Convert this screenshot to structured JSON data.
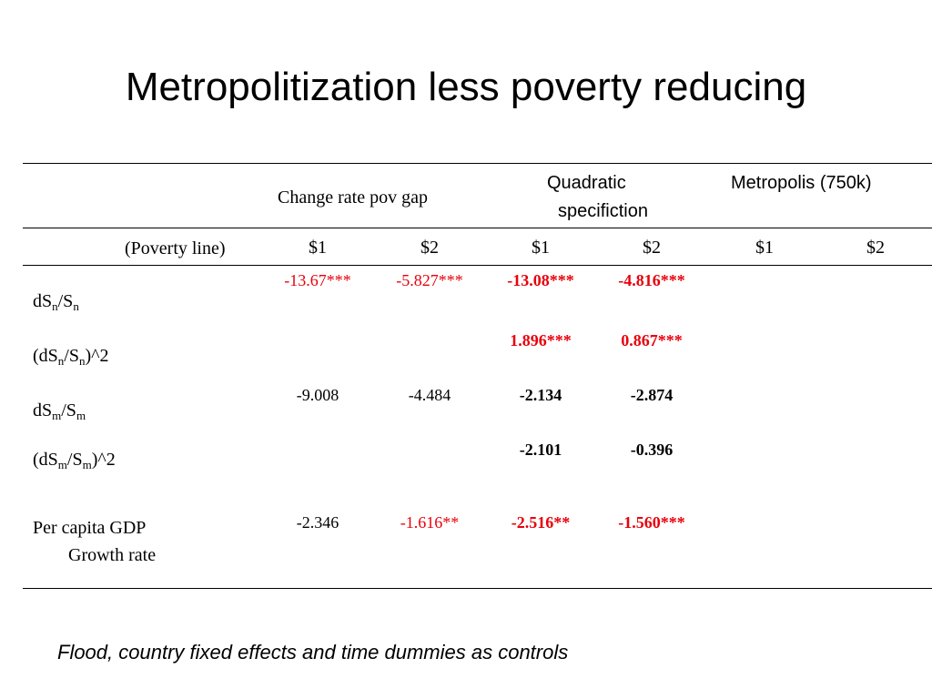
{
  "title": "Metropolitization less poverty reducing",
  "table": {
    "headers": {
      "group1": "Change rate pov gap",
      "group2": [
        "Quadratic",
        "specifiction"
      ],
      "group3": "Metropolis (750k)",
      "poverty_line_label": "(Poverty line)",
      "columns": [
        "$1",
        "$2",
        "$1",
        "$2",
        "$1",
        "$2"
      ]
    },
    "rows": [
      {
        "label_parts": [
          "dS",
          "n",
          "/S",
          "n",
          ""
        ],
        "cells": [
          "-13.67***",
          "-5.827***",
          "-13.08***",
          "-4.816***",
          "",
          ""
        ],
        "styles": [
          "red",
          "red",
          "red bold",
          "red bold",
          "",
          ""
        ]
      },
      {
        "label_parts": [
          "(dS",
          "n",
          "/S",
          "n",
          ")^2"
        ],
        "cells": [
          "",
          "",
          "1.896***",
          "0.867***",
          "",
          ""
        ],
        "styles": [
          "",
          "",
          "red bold",
          "red bold",
          "",
          ""
        ]
      },
      {
        "label_parts": [
          "dS",
          "m",
          "/S",
          "m",
          ""
        ],
        "cells": [
          "-9.008",
          "-4.484",
          "-2.134",
          "-2.874",
          "",
          ""
        ],
        "styles": [
          "",
          "",
          "bold",
          "bold",
          "",
          ""
        ]
      },
      {
        "label_parts": [
          "(dS",
          "m",
          "/S",
          "m",
          ")^2"
        ],
        "cells": [
          "",
          "",
          "-2.101",
          "-0.396",
          "",
          ""
        ],
        "styles": [
          "",
          "",
          "bold",
          "bold",
          "",
          ""
        ]
      },
      {
        "label_lines": [
          "Per capita GDP",
          "Growth rate"
        ],
        "cells": [
          "-2.346",
          "-1.616**",
          "-2.516**",
          "-1.560***",
          "",
          ""
        ],
        "styles": [
          "",
          "red",
          "red bold",
          "red bold",
          "",
          ""
        ]
      }
    ]
  },
  "footnote": "Flood, country fixed effects and time dummies as controls",
  "colors": {
    "significant": "#e8000b",
    "text": "#000000"
  }
}
